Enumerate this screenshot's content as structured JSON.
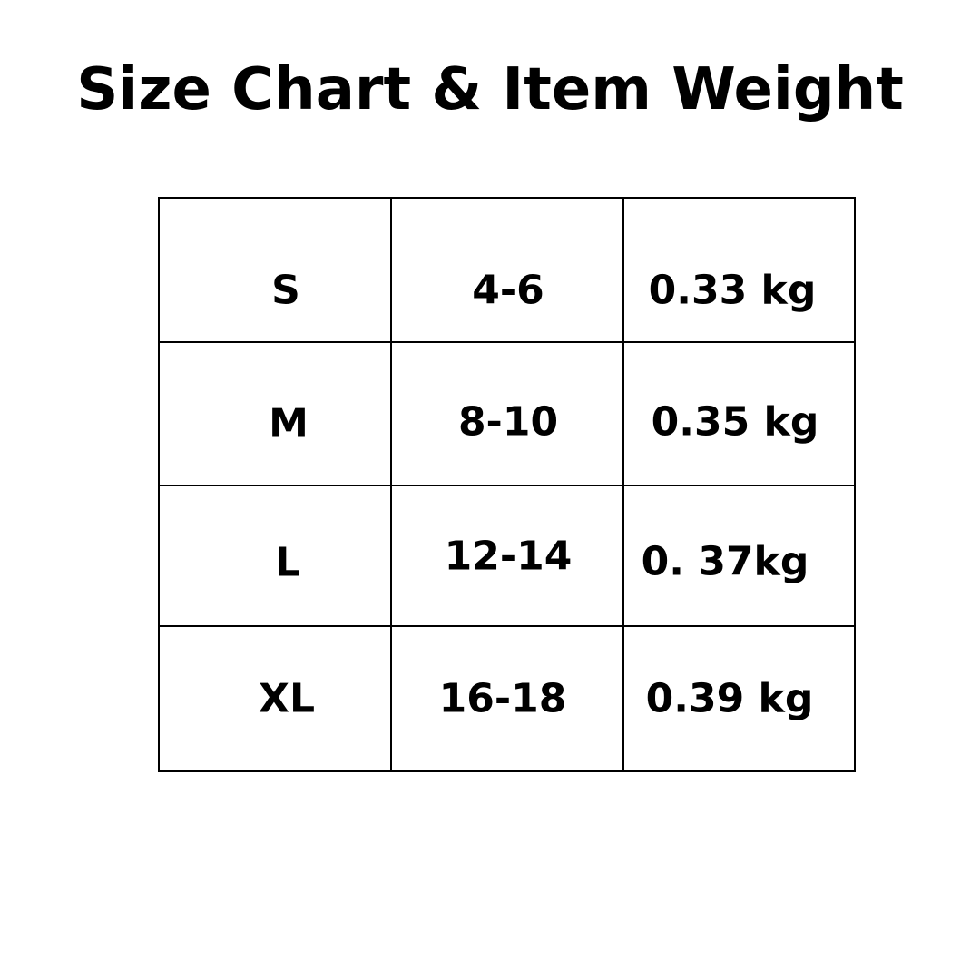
{
  "title": "Size Chart & Item Weight",
  "table": {
    "rows": [
      {
        "size": "S",
        "range": "4-6",
        "weight": "0.33 kg"
      },
      {
        "size": "M",
        "range": "8-10",
        "weight": "0.35 kg"
      },
      {
        "size": "L",
        "range": "12-14",
        "weight": "0. 37kg"
      },
      {
        "size": "XL",
        "range": "16-18",
        "weight": "0.39 kg"
      }
    ]
  }
}
